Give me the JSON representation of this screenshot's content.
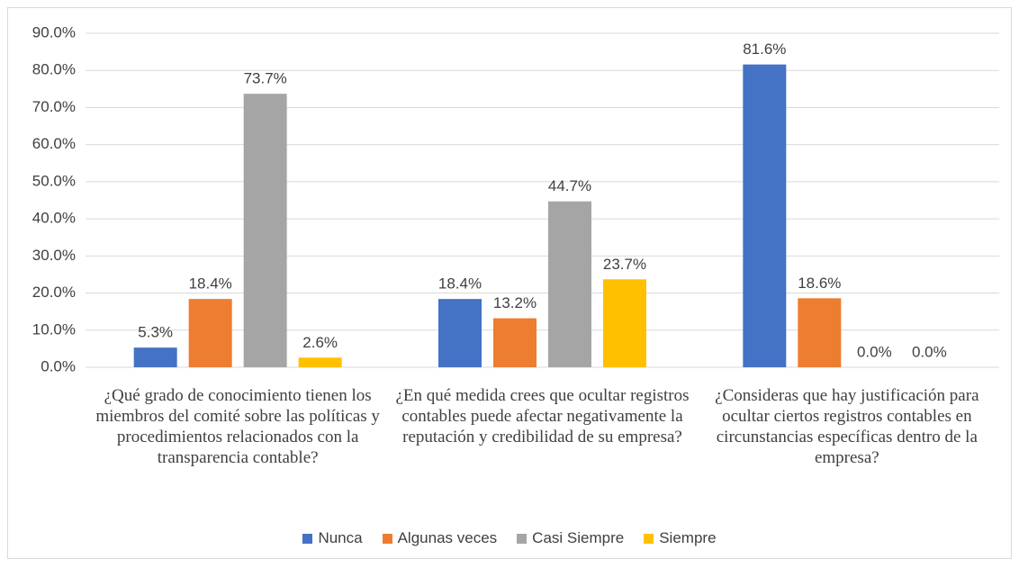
{
  "chart_data": {
    "type": "bar",
    "categories": [
      "¿Qué grado de conocimiento tienen los miembros del comité sobre las políticas y procedimientos relacionados con la transparencia contable?",
      "¿En qué medida crees que ocultar registros contables puede afectar negativamente la reputación y credibilidad de su empresa?",
      "¿Consideras que hay justificación para ocultar ciertos registros contables en circunstancias específicas dentro de la empresa?"
    ],
    "series": [
      {
        "name": "Nunca",
        "color": "#4472c4",
        "values": [
          5.3,
          18.4,
          81.6
        ],
        "value_labels": [
          "5.3%",
          "18.4%",
          "81.6%"
        ]
      },
      {
        "name": "Algunas veces",
        "color": "#ed7d31",
        "values": [
          18.4,
          13.2,
          18.6
        ],
        "value_labels": [
          "18.4%",
          "13.2%",
          "18.6%"
        ]
      },
      {
        "name": "Casi Siempre",
        "color": "#a5a5a5",
        "values": [
          73.7,
          44.7,
          0.0
        ],
        "value_labels": [
          "73.7%",
          "44.7%",
          "0.0%"
        ]
      },
      {
        "name": "Siempre",
        "color": "#ffc000",
        "values": [
          2.6,
          23.7,
          0.0
        ],
        "value_labels": [
          "2.6%",
          "23.7%",
          "0.0%"
        ]
      }
    ],
    "ylim": [
      0,
      90
    ],
    "yticks": [
      {
        "value": 0,
        "label": "0.0%"
      },
      {
        "value": 10,
        "label": "10.0%"
      },
      {
        "value": 20,
        "label": "20.0%"
      },
      {
        "value": 30,
        "label": "30.0%"
      },
      {
        "value": 40,
        "label": "40.0%"
      },
      {
        "value": 50,
        "label": "50.0%"
      },
      {
        "value": 60,
        "label": "60.0%"
      },
      {
        "value": 70,
        "label": "70.0%"
      },
      {
        "value": 80,
        "label": "80.0%"
      },
      {
        "value": 90,
        "label": "90.0%"
      }
    ],
    "grid": true,
    "legend": "bottom"
  }
}
